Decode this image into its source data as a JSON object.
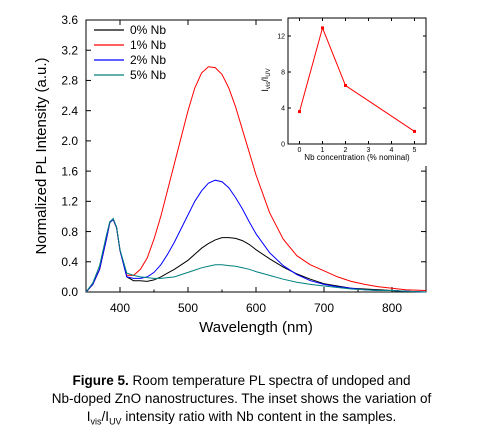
{
  "caption": {
    "label": "Figure 5.",
    "line1": " Room temperature  PL spectra of undoped and",
    "line2": "Nb-doped ZnO nanostructures.  The inset shows the variation of",
    "line3_prefix": "I",
    "line3_sub1": "vis",
    "line3_slash": "/I",
    "line3_sub2": "UV",
    "line3_suffix": "  intensity  ratio with Nb content  in the samples."
  },
  "chart_data": [
    {
      "type": "line",
      "title": "",
      "xlabel": "Wavelength (nm)",
      "ylabel": "Normalized PL Intensity (a.u.)",
      "xlim": [
        350,
        850
      ],
      "ylim": [
        0,
        3.6
      ],
      "xticks": [
        400,
        500,
        600,
        700,
        800
      ],
      "xtick_labels": [
        "400",
        "500",
        "600",
        "700",
        "800"
      ],
      "yticks": [
        0.0,
        0.4,
        0.8,
        1.2,
        1.6,
        2.0,
        2.4,
        2.8,
        3.2,
        3.6
      ],
      "ytick_labels": [
        "0.0",
        "0.4",
        "0.8",
        "1.2",
        "1.6",
        "2.0",
        "2.4",
        "2.8",
        "3.2",
        "3.6"
      ],
      "grid": false,
      "legend_position": "top-left",
      "series": [
        {
          "name": "0% Nb",
          "color": "#000000",
          "x": [
            350,
            360,
            370,
            380,
            385,
            390,
            395,
            400,
            410,
            420,
            430,
            440,
            450,
            460,
            470,
            480,
            490,
            500,
            510,
            520,
            530,
            540,
            550,
            560,
            570,
            580,
            590,
            600,
            620,
            640,
            660,
            680,
            700,
            720,
            740,
            760,
            780,
            800,
            820,
            850
          ],
          "y": [
            0.0,
            0.1,
            0.3,
            0.7,
            0.92,
            0.97,
            0.85,
            0.55,
            0.2,
            0.15,
            0.15,
            0.14,
            0.16,
            0.2,
            0.25,
            0.3,
            0.36,
            0.42,
            0.5,
            0.58,
            0.64,
            0.69,
            0.72,
            0.72,
            0.71,
            0.68,
            0.63,
            0.56,
            0.44,
            0.33,
            0.24,
            0.17,
            0.11,
            0.08,
            0.05,
            0.04,
            0.03,
            0.02,
            0.01,
            0.0
          ]
        },
        {
          "name": "1% Nb",
          "color": "#ff0000",
          "x": [
            350,
            360,
            370,
            380,
            385,
            390,
            395,
            400,
            410,
            420,
            430,
            440,
            450,
            460,
            470,
            480,
            490,
            500,
            510,
            520,
            530,
            540,
            550,
            560,
            570,
            580,
            590,
            600,
            620,
            640,
            660,
            680,
            700,
            720,
            740,
            760,
            780,
            800,
            820,
            850
          ],
          "y": [
            0.0,
            0.1,
            0.3,
            0.7,
            0.92,
            0.96,
            0.85,
            0.55,
            0.22,
            0.22,
            0.3,
            0.45,
            0.7,
            1.0,
            1.35,
            1.7,
            2.05,
            2.4,
            2.7,
            2.9,
            2.98,
            2.97,
            2.88,
            2.7,
            2.45,
            2.15,
            1.85,
            1.55,
            1.05,
            0.7,
            0.48,
            0.36,
            0.28,
            0.2,
            0.14,
            0.1,
            0.07,
            0.05,
            0.03,
            0.02
          ]
        },
        {
          "name": "2% Nb",
          "color": "#0000ff",
          "x": [
            350,
            360,
            370,
            380,
            385,
            390,
            395,
            400,
            410,
            420,
            430,
            440,
            450,
            460,
            470,
            480,
            490,
            500,
            510,
            520,
            530,
            540,
            550,
            560,
            570,
            580,
            590,
            600,
            620,
            640,
            660,
            680,
            700,
            720,
            740,
            760,
            780,
            800,
            820,
            850
          ],
          "y": [
            0.0,
            0.1,
            0.3,
            0.7,
            0.92,
            0.96,
            0.85,
            0.55,
            0.2,
            0.18,
            0.18,
            0.2,
            0.26,
            0.36,
            0.5,
            0.66,
            0.84,
            1.02,
            1.2,
            1.34,
            1.44,
            1.48,
            1.46,
            1.38,
            1.25,
            1.1,
            0.93,
            0.77,
            0.52,
            0.35,
            0.23,
            0.15,
            0.1,
            0.07,
            0.05,
            0.03,
            0.02,
            0.02,
            0.01,
            0.0
          ]
        },
        {
          "name": "5% Nb",
          "color": "#008080",
          "x": [
            350,
            360,
            370,
            380,
            385,
            390,
            395,
            400,
            410,
            420,
            430,
            440,
            450,
            460,
            470,
            480,
            490,
            500,
            510,
            520,
            530,
            540,
            550,
            560,
            570,
            580,
            590,
            600,
            620,
            640,
            660,
            680,
            700,
            720,
            740,
            760,
            780,
            800,
            820,
            850
          ],
          "y": [
            0.0,
            0.12,
            0.35,
            0.75,
            0.93,
            0.97,
            0.86,
            0.56,
            0.25,
            0.22,
            0.2,
            0.19,
            0.18,
            0.18,
            0.19,
            0.2,
            0.23,
            0.26,
            0.29,
            0.32,
            0.34,
            0.36,
            0.36,
            0.35,
            0.34,
            0.32,
            0.3,
            0.27,
            0.22,
            0.17,
            0.13,
            0.1,
            0.08,
            0.06,
            0.04,
            0.03,
            0.02,
            0.02,
            0.01,
            0.0
          ]
        }
      ]
    },
    {
      "type": "line",
      "title": "",
      "xlabel": "Nb concentration (% nominal)",
      "ylabel_main": "I",
      "ylabel_sub1": "vis",
      "ylabel_mid": "/I",
      "ylabel_sub2": "UV",
      "xlim": [
        -0.5,
        5.5
      ],
      "ylim": [
        0,
        14
      ],
      "xticks": [
        0,
        1,
        2,
        3,
        4,
        5
      ],
      "xtick_labels": [
        "0",
        "1",
        "2",
        "3",
        "4",
        "5"
      ],
      "yticks": [
        0,
        4,
        8,
        12
      ],
      "ytick_labels": [
        "0",
        "4",
        "8",
        "12"
      ],
      "grid": false,
      "series": [
        {
          "color": "#ff0000",
          "x": [
            0,
            1,
            2,
            5
          ],
          "y": [
            3.6,
            12.9,
            6.5,
            1.4
          ]
        }
      ]
    }
  ]
}
